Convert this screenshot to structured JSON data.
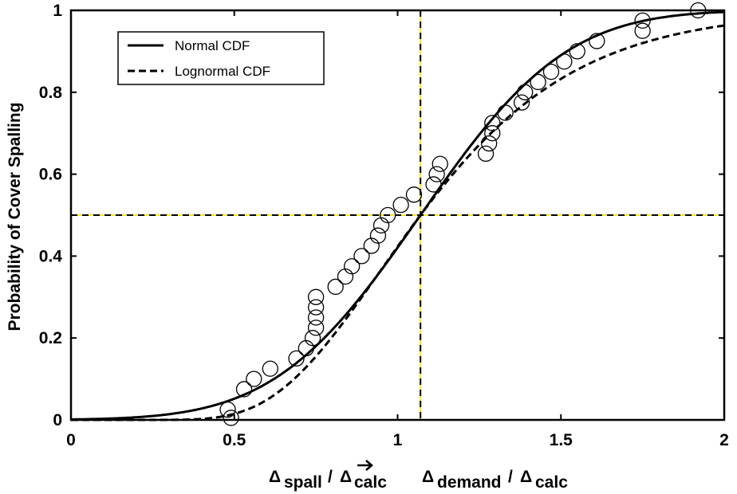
{
  "chart_data": {
    "type": "scatter",
    "ylabel": "Probability of Cover Spalling",
    "xlabel_parts": {
      "delta": "Δ",
      "spall": "spall",
      "calc": "calc",
      "demand": "demand",
      "slash": "/"
    },
    "xlim": [
      0,
      2
    ],
    "ylim": [
      0,
      1
    ],
    "xticks": [
      0,
      0.5,
      1,
      1.5,
      2
    ],
    "xtick_labels": [
      "0",
      "0.5",
      "1",
      "1.5",
      "2"
    ],
    "yticks": [
      0,
      0.2,
      0.4,
      0.6,
      0.8,
      1
    ],
    "ytick_labels": [
      "0",
      "0.2",
      "0.4",
      "0.6",
      "0.8",
      "1"
    ],
    "grid": false,
    "legend_position": "top-left",
    "reference_lines": {
      "vertical_x": 1.07,
      "horizontal_y": 0.5,
      "color": "#f2e33a"
    },
    "series": [
      {
        "name": "Normal CDF",
        "style": "solid",
        "distribution": "normal",
        "mean": 1.07,
        "std": 0.35
      },
      {
        "name": "Lognormal CDF",
        "style": "dashed",
        "distribution": "lognormal",
        "median": 1.07,
        "log_std": 0.35
      },
      {
        "name": "",
        "style": "open-circle",
        "points": [
          [
            0.48,
            0.025
          ],
          [
            0.49,
            0.005
          ],
          [
            0.53,
            0.075
          ],
          [
            0.56,
            0.1
          ],
          [
            0.61,
            0.125
          ],
          [
            0.69,
            0.15
          ],
          [
            0.72,
            0.175
          ],
          [
            0.74,
            0.2
          ],
          [
            0.75,
            0.225
          ],
          [
            0.75,
            0.25
          ],
          [
            0.75,
            0.275
          ],
          [
            0.75,
            0.3
          ],
          [
            0.81,
            0.325
          ],
          [
            0.84,
            0.35
          ],
          [
            0.86,
            0.375
          ],
          [
            0.89,
            0.4
          ],
          [
            0.92,
            0.425
          ],
          [
            0.94,
            0.45
          ],
          [
            0.95,
            0.475
          ],
          [
            0.97,
            0.5
          ],
          [
            1.01,
            0.525
          ],
          [
            1.05,
            0.55
          ],
          [
            1.11,
            0.575
          ],
          [
            1.12,
            0.6
          ],
          [
            1.13,
            0.625
          ],
          [
            1.27,
            0.65
          ],
          [
            1.28,
            0.675
          ],
          [
            1.29,
            0.7
          ],
          [
            1.29,
            0.725
          ],
          [
            1.33,
            0.75
          ],
          [
            1.38,
            0.775
          ],
          [
            1.39,
            0.8
          ],
          [
            1.43,
            0.825
          ],
          [
            1.47,
            0.85
          ],
          [
            1.51,
            0.875
          ],
          [
            1.55,
            0.9
          ],
          [
            1.61,
            0.925
          ],
          [
            1.75,
            0.95
          ],
          [
            1.75,
            0.975
          ],
          [
            1.92,
            1.0
          ]
        ]
      }
    ]
  }
}
